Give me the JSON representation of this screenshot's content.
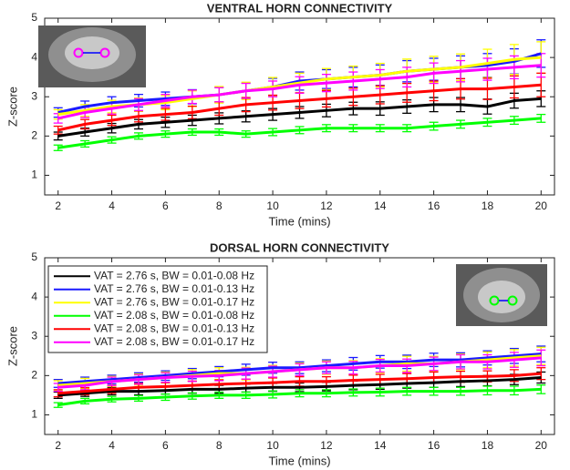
{
  "chart_data": [
    {
      "type": "line",
      "title": "VENTRAL HORN CONNECTIVITY",
      "xlabel": "Time (mins)",
      "ylabel": "Z-score",
      "x": [
        2,
        3,
        4,
        5,
        6,
        7,
        8,
        9,
        10,
        11,
        12,
        13,
        14,
        15,
        16,
        17,
        18,
        19,
        20
      ],
      "xlim": [
        1.5,
        20.5
      ],
      "xticks": [
        2,
        4,
        6,
        8,
        10,
        12,
        14,
        16,
        18,
        20
      ],
      "ylim": [
        0.5,
        5
      ],
      "yticks": [
        1,
        2,
        3,
        4,
        5
      ],
      "series": [
        {
          "name": "VAT = 2.76 s, BW = 0.01-0.08 Hz",
          "color": "#000000",
          "values": [
            2.0,
            2.1,
            2.2,
            2.3,
            2.35,
            2.4,
            2.45,
            2.5,
            2.55,
            2.6,
            2.65,
            2.7,
            2.7,
            2.75,
            2.8,
            2.8,
            2.75,
            2.9,
            2.95
          ],
          "errors": [
            0.1,
            0.1,
            0.12,
            0.12,
            0.13,
            0.13,
            0.14,
            0.14,
            0.15,
            0.15,
            0.16,
            0.16,
            0.17,
            0.17,
            0.18,
            0.18,
            0.19,
            0.19,
            0.2
          ]
        },
        {
          "name": "VAT = 2.76 s, BW = 0.01-0.13 Hz",
          "color": "#1a1aff",
          "values": [
            2.6,
            2.75,
            2.85,
            2.9,
            2.95,
            3.0,
            3.05,
            3.15,
            3.25,
            3.4,
            3.45,
            3.5,
            3.55,
            3.65,
            3.7,
            3.75,
            3.8,
            3.9,
            4.1
          ],
          "errors": [
            0.12,
            0.14,
            0.15,
            0.16,
            0.17,
            0.18,
            0.19,
            0.2,
            0.22,
            0.23,
            0.24,
            0.25,
            0.26,
            0.27,
            0.28,
            0.29,
            0.3,
            0.32,
            0.35
          ]
        },
        {
          "name": "VAT = 2.76 s, BW = 0.01-0.17 Hz",
          "color": "#ffff00",
          "values": [
            2.55,
            2.65,
            2.75,
            2.8,
            2.85,
            2.95,
            3.05,
            3.15,
            3.25,
            3.35,
            3.45,
            3.5,
            3.55,
            3.65,
            3.7,
            3.75,
            3.85,
            3.95,
            4.0
          ],
          "errors": [
            0.12,
            0.15,
            0.16,
            0.17,
            0.18,
            0.2,
            0.21,
            0.22,
            0.24,
            0.25,
            0.27,
            0.28,
            0.3,
            0.31,
            0.33,
            0.34,
            0.36,
            0.38,
            0.4
          ]
        },
        {
          "name": "VAT = 2.08 s, BW = 0.01-0.08 Hz",
          "color": "#00ff00",
          "values": [
            1.7,
            1.8,
            1.9,
            2.0,
            2.05,
            2.1,
            2.1,
            2.05,
            2.1,
            2.15,
            2.2,
            2.2,
            2.2,
            2.2,
            2.25,
            2.3,
            2.35,
            2.4,
            2.45
          ],
          "errors": [
            0.07,
            0.08,
            0.08,
            0.08,
            0.08,
            0.08,
            0.08,
            0.08,
            0.09,
            0.09,
            0.09,
            0.09,
            0.09,
            0.09,
            0.1,
            0.1,
            0.1,
            0.1,
            0.1
          ]
        },
        {
          "name": "VAT = 2.08 s, BW = 0.01-0.13 Hz",
          "color": "#ff0000",
          "values": [
            2.15,
            2.3,
            2.4,
            2.5,
            2.55,
            2.6,
            2.7,
            2.8,
            2.85,
            2.9,
            2.95,
            3.0,
            3.05,
            3.1,
            3.15,
            3.2,
            3.2,
            3.25,
            3.3
          ],
          "errors": [
            0.1,
            0.12,
            0.13,
            0.14,
            0.15,
            0.16,
            0.17,
            0.18,
            0.19,
            0.2,
            0.21,
            0.22,
            0.23,
            0.24,
            0.25,
            0.26,
            0.27,
            0.28,
            0.3
          ]
        },
        {
          "name": "VAT = 2.08 s, BW = 0.01-0.17 Hz",
          "color": "#ff00ff",
          "values": [
            2.45,
            2.6,
            2.7,
            2.8,
            2.9,
            3.0,
            3.05,
            3.15,
            3.2,
            3.3,
            3.35,
            3.4,
            3.45,
            3.5,
            3.6,
            3.65,
            3.7,
            3.75,
            3.8
          ],
          "errors": [
            0.12,
            0.13,
            0.14,
            0.15,
            0.16,
            0.17,
            0.18,
            0.19,
            0.2,
            0.21,
            0.22,
            0.23,
            0.24,
            0.25,
            0.26,
            0.27,
            0.28,
            0.29,
            0.3
          ]
        }
      ]
    },
    {
      "type": "line",
      "title": "DORSAL HORN CONNECTIVITY",
      "xlabel": "Time (mins)",
      "ylabel": "Z-score",
      "x": [
        2,
        3,
        4,
        5,
        6,
        7,
        8,
        9,
        10,
        11,
        12,
        13,
        14,
        15,
        16,
        17,
        18,
        19,
        20
      ],
      "xlim": [
        1.5,
        20.5
      ],
      "xticks": [
        2,
        4,
        6,
        8,
        10,
        12,
        14,
        16,
        18,
        20
      ],
      "ylim": [
        0.5,
        5
      ],
      "yticks": [
        1,
        2,
        3,
        4,
        5
      ],
      "legend": "upper left",
      "series": [
        {
          "name": "VAT = 2.76 s, BW = 0.01-0.08 Hz",
          "color": "#000000",
          "values": [
            1.5,
            1.55,
            1.6,
            1.6,
            1.62,
            1.65,
            1.65,
            1.68,
            1.7,
            1.7,
            1.72,
            1.75,
            1.77,
            1.8,
            1.82,
            1.85,
            1.87,
            1.9,
            1.95
          ],
          "errors": [
            0.08,
            0.08,
            0.09,
            0.09,
            0.09,
            0.1,
            0.1,
            0.1,
            0.1,
            0.11,
            0.11,
            0.11,
            0.12,
            0.12,
            0.12,
            0.13,
            0.13,
            0.13,
            0.14
          ]
        },
        {
          "name": "VAT = 2.76 s, BW = 0.01-0.13 Hz",
          "color": "#1a1aff",
          "values": [
            1.8,
            1.85,
            1.9,
            1.95,
            2.0,
            2.05,
            2.1,
            2.15,
            2.2,
            2.2,
            2.25,
            2.3,
            2.35,
            2.35,
            2.4,
            2.4,
            2.45,
            2.5,
            2.55
          ],
          "errors": [
            0.1,
            0.11,
            0.11,
            0.12,
            0.12,
            0.13,
            0.13,
            0.14,
            0.14,
            0.15,
            0.15,
            0.16,
            0.16,
            0.17,
            0.17,
            0.18,
            0.18,
            0.19,
            0.2
          ]
        },
        {
          "name": "VAT = 2.76 s, BW = 0.01-0.17 Hz",
          "color": "#ffff00",
          "values": [
            1.75,
            1.8,
            1.85,
            1.9,
            1.95,
            2.0,
            2.05,
            2.05,
            2.1,
            2.15,
            2.2,
            2.2,
            2.25,
            2.3,
            2.3,
            2.35,
            2.4,
            2.45,
            2.5
          ],
          "errors": [
            0.12,
            0.13,
            0.13,
            0.14,
            0.14,
            0.15,
            0.15,
            0.16,
            0.16,
            0.17,
            0.17,
            0.18,
            0.18,
            0.19,
            0.19,
            0.2,
            0.2,
            0.21,
            0.22
          ]
        },
        {
          "name": "VAT = 2.08 s, BW = 0.01-0.08 Hz",
          "color": "#00ff00",
          "values": [
            1.25,
            1.35,
            1.4,
            1.42,
            1.45,
            1.48,
            1.5,
            1.5,
            1.52,
            1.55,
            1.55,
            1.57,
            1.58,
            1.6,
            1.6,
            1.6,
            1.62,
            1.62,
            1.65
          ],
          "errors": [
            0.06,
            0.07,
            0.07,
            0.07,
            0.08,
            0.08,
            0.08,
            0.08,
            0.09,
            0.09,
            0.09,
            0.09,
            0.1,
            0.1,
            0.1,
            0.1,
            0.11,
            0.11,
            0.11
          ]
        },
        {
          "name": "VAT = 2.08 s, BW = 0.01-0.13 Hz",
          "color": "#ff0000",
          "values": [
            1.55,
            1.6,
            1.65,
            1.7,
            1.72,
            1.75,
            1.78,
            1.8,
            1.82,
            1.85,
            1.85,
            1.88,
            1.9,
            1.92,
            1.95,
            1.97,
            1.98,
            2.0,
            2.05
          ],
          "errors": [
            0.09,
            0.09,
            0.1,
            0.1,
            0.1,
            0.11,
            0.11,
            0.11,
            0.12,
            0.12,
            0.12,
            0.13,
            0.13,
            0.13,
            0.14,
            0.14,
            0.14,
            0.15,
            0.15
          ]
        },
        {
          "name": "VAT = 2.08 s, BW = 0.01-0.17 Hz",
          "color": "#ff00ff",
          "values": [
            1.7,
            1.75,
            1.85,
            1.9,
            1.95,
            1.98,
            2.0,
            2.05,
            2.1,
            2.15,
            2.2,
            2.2,
            2.25,
            2.25,
            2.3,
            2.35,
            2.35,
            2.4,
            2.45
          ],
          "errors": [
            0.1,
            0.11,
            0.11,
            0.12,
            0.12,
            0.13,
            0.13,
            0.14,
            0.14,
            0.15,
            0.15,
            0.16,
            0.16,
            0.17,
            0.17,
            0.18,
            0.18,
            0.19,
            0.2
          ]
        }
      ]
    }
  ]
}
